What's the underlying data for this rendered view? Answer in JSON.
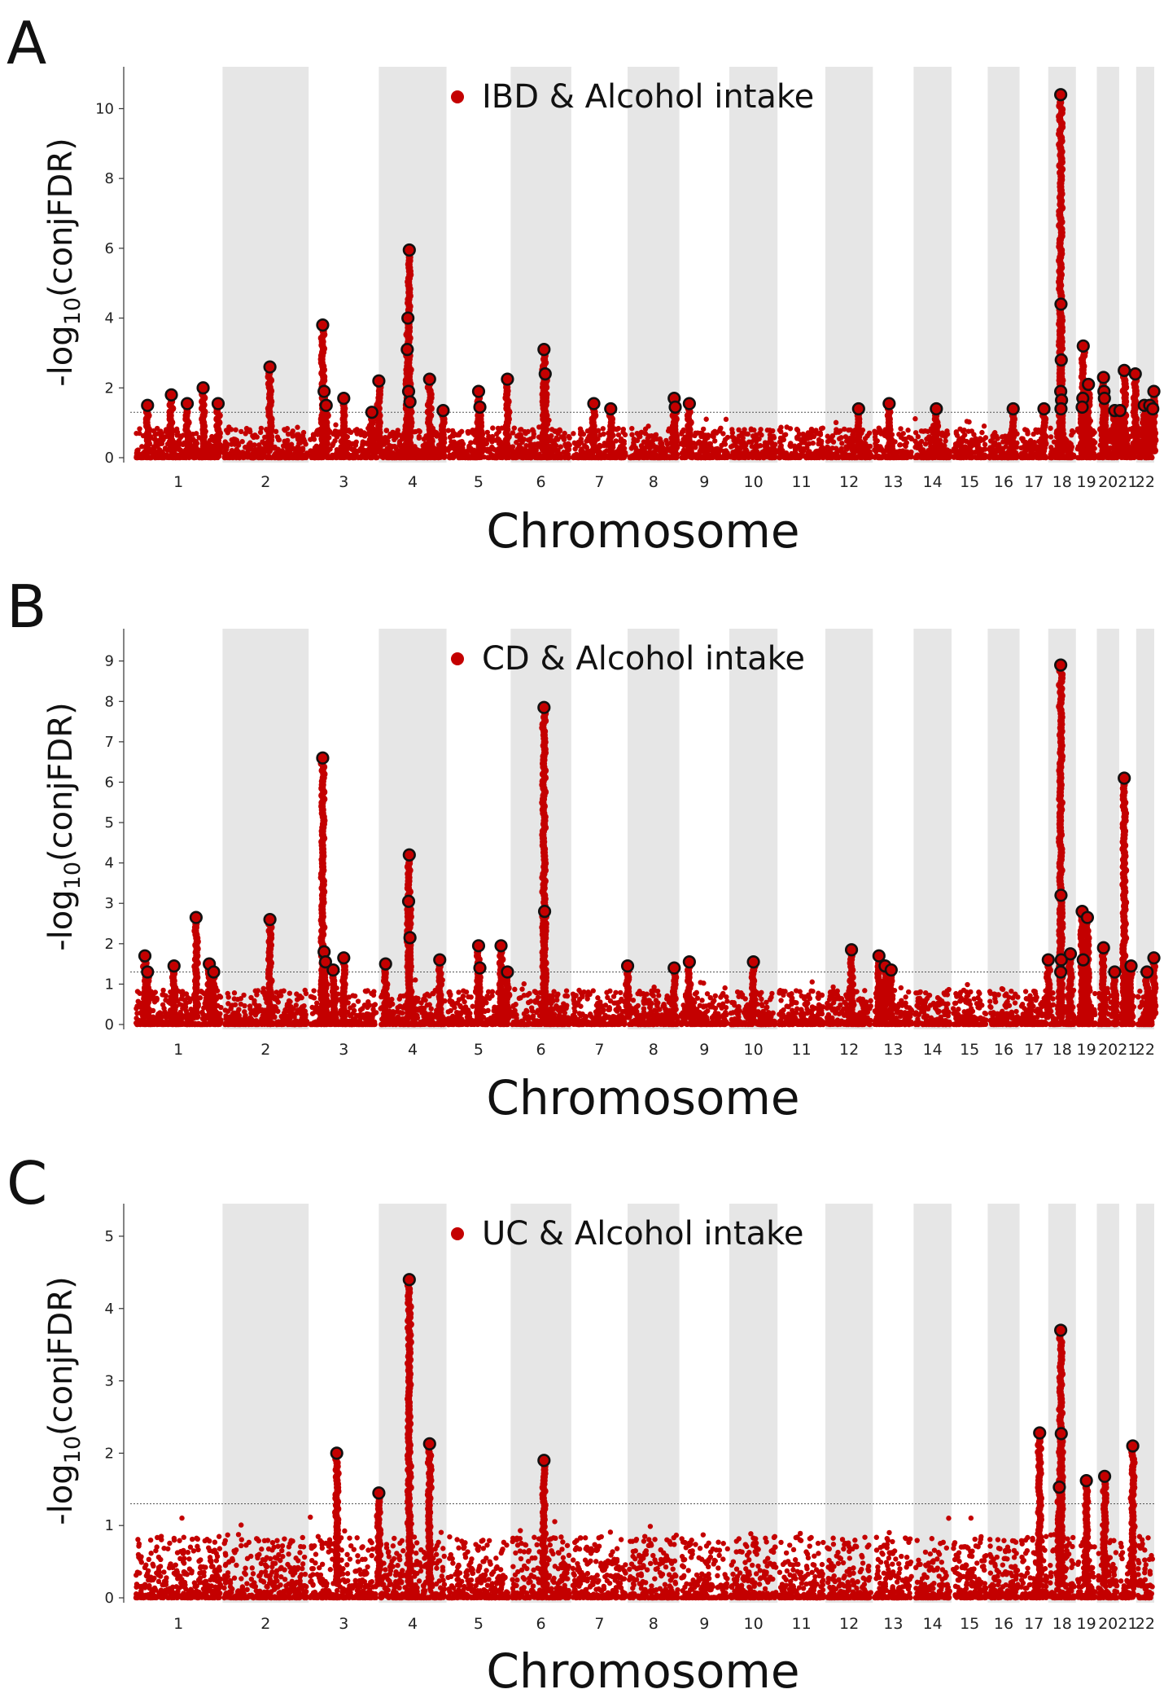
{
  "chart_data": [
    {
      "panel_label": "A",
      "type": "scatter",
      "legend": "IBD & Alcohol intake",
      "ylabel_base": "-log",
      "ylabel_sub": "10",
      "ylabel_rest": "(conjFDR)",
      "xlabel": "Chromosome",
      "ylim": [
        0,
        11.2
      ],
      "yticks": [
        0,
        2,
        4,
        6,
        8,
        10
      ],
      "threshold": 1.3,
      "x_tick_labels": [
        "1",
        "2",
        "3",
        "4",
        "5",
        "6",
        "7",
        "8",
        "9",
        "10",
        "11",
        "12",
        "13",
        "14",
        "15",
        "16",
        "17",
        "18",
        "19",
        "20",
        "21",
        "22"
      ],
      "lead_snps": [
        {
          "pos": 0.15,
          "y": 1.5
        },
        {
          "pos": 0.42,
          "y": 1.8
        },
        {
          "pos": 0.6,
          "y": 1.55
        },
        {
          "pos": 0.78,
          "y": 2.0
        },
        {
          "pos": 0.95,
          "y": 1.55
        },
        {
          "pos": 1.55,
          "y": 2.6
        },
        {
          "pos": 2.2,
          "y": 3.8
        },
        {
          "pos": 2.22,
          "y": 1.9
        },
        {
          "pos": 2.25,
          "y": 1.5
        },
        {
          "pos": 2.5,
          "y": 1.7
        },
        {
          "pos": 2.9,
          "y": 1.3
        },
        {
          "pos": 3.0,
          "y": 2.2
        },
        {
          "pos": 3.45,
          "y": 5.95
        },
        {
          "pos": 3.43,
          "y": 4.0
        },
        {
          "pos": 3.42,
          "y": 3.1
        },
        {
          "pos": 3.44,
          "y": 1.9
        },
        {
          "pos": 3.46,
          "y": 1.6
        },
        {
          "pos": 3.75,
          "y": 2.25
        },
        {
          "pos": 3.95,
          "y": 1.35
        },
        {
          "pos": 4.5,
          "y": 1.9
        },
        {
          "pos": 4.52,
          "y": 1.45
        },
        {
          "pos": 4.95,
          "y": 2.25
        },
        {
          "pos": 5.55,
          "y": 3.1
        },
        {
          "pos": 5.57,
          "y": 2.4
        },
        {
          "pos": 6.4,
          "y": 1.55
        },
        {
          "pos": 6.7,
          "y": 1.4
        },
        {
          "pos": 7.9,
          "y": 1.7
        },
        {
          "pos": 7.92,
          "y": 1.45
        },
        {
          "pos": 8.2,
          "y": 1.55
        },
        {
          "pos": 11.7,
          "y": 1.4
        },
        {
          "pos": 12.4,
          "y": 1.55
        },
        {
          "pos": 13.6,
          "y": 1.4
        },
        {
          "pos": 15.8,
          "y": 1.4
        },
        {
          "pos": 16.85,
          "y": 1.4
        },
        {
          "pos": 17.45,
          "y": 10.4
        },
        {
          "pos": 17.46,
          "y": 4.4
        },
        {
          "pos": 17.47,
          "y": 2.8
        },
        {
          "pos": 17.45,
          "y": 1.9
        },
        {
          "pos": 17.48,
          "y": 1.65
        },
        {
          "pos": 17.46,
          "y": 1.4
        },
        {
          "pos": 18.35,
          "y": 3.2
        },
        {
          "pos": 18.33,
          "y": 1.7
        },
        {
          "pos": 18.3,
          "y": 1.45
        },
        {
          "pos": 18.6,
          "y": 2.1
        },
        {
          "pos": 19.3,
          "y": 2.3
        },
        {
          "pos": 19.32,
          "y": 1.9
        },
        {
          "pos": 19.34,
          "y": 1.7
        },
        {
          "pos": 19.8,
          "y": 1.35
        },
        {
          "pos": 20.05,
          "y": 1.35
        },
        {
          "pos": 20.3,
          "y": 2.5
        },
        {
          "pos": 20.95,
          "y": 2.4
        },
        {
          "pos": 21.45,
          "y": 1.5
        },
        {
          "pos": 21.75,
          "y": 1.5
        },
        {
          "pos": 21.98,
          "y": 1.9
        },
        {
          "pos": 21.92,
          "y": 1.4
        }
      ]
    },
    {
      "panel_label": "B",
      "type": "scatter",
      "legend": "CD & Alcohol intake",
      "ylabel_base": "-log",
      "ylabel_sub": "10",
      "ylabel_rest": "(conjFDR)",
      "xlabel": "Chromosome",
      "ylim": [
        0,
        9.8
      ],
      "yticks": [
        0,
        1,
        2,
        3,
        4,
        5,
        6,
        7,
        8,
        9
      ],
      "threshold": 1.3,
      "x_tick_labels": [
        "1",
        "2",
        "3",
        "4",
        "5",
        "6",
        "7",
        "8",
        "9",
        "10",
        "11",
        "12",
        "13",
        "14",
        "15",
        "16",
        "17",
        "18",
        "19",
        "20",
        "21",
        "22"
      ],
      "lead_snps": [
        {
          "pos": 0.12,
          "y": 1.7
        },
        {
          "pos": 0.15,
          "y": 1.3
        },
        {
          "pos": 0.45,
          "y": 1.45
        },
        {
          "pos": 0.7,
          "y": 2.65
        },
        {
          "pos": 0.85,
          "y": 1.5
        },
        {
          "pos": 0.9,
          "y": 1.3
        },
        {
          "pos": 1.55,
          "y": 2.6
        },
        {
          "pos": 2.2,
          "y": 6.6
        },
        {
          "pos": 2.22,
          "y": 1.8
        },
        {
          "pos": 2.24,
          "y": 1.55
        },
        {
          "pos": 2.35,
          "y": 1.35
        },
        {
          "pos": 2.5,
          "y": 1.65
        },
        {
          "pos": 3.1,
          "y": 1.5
        },
        {
          "pos": 3.45,
          "y": 4.2
        },
        {
          "pos": 3.44,
          "y": 3.05
        },
        {
          "pos": 3.46,
          "y": 2.15
        },
        {
          "pos": 3.9,
          "y": 1.6
        },
        {
          "pos": 4.5,
          "y": 1.95
        },
        {
          "pos": 4.52,
          "y": 1.4
        },
        {
          "pos": 4.85,
          "y": 1.95
        },
        {
          "pos": 4.95,
          "y": 1.3
        },
        {
          "pos": 5.55,
          "y": 7.85
        },
        {
          "pos": 5.56,
          "y": 2.8
        },
        {
          "pos": 7.0,
          "y": 1.45
        },
        {
          "pos": 7.9,
          "y": 1.4
        },
        {
          "pos": 8.2,
          "y": 1.55
        },
        {
          "pos": 9.5,
          "y": 1.55
        },
        {
          "pos": 11.55,
          "y": 1.85
        },
        {
          "pos": 12.15,
          "y": 1.7
        },
        {
          "pos": 12.3,
          "y": 1.45
        },
        {
          "pos": 12.45,
          "y": 1.35
        },
        {
          "pos": 17.0,
          "y": 1.6
        },
        {
          "pos": 17.45,
          "y": 8.9
        },
        {
          "pos": 17.46,
          "y": 3.2
        },
        {
          "pos": 17.47,
          "y": 1.6
        },
        {
          "pos": 17.45,
          "y": 1.3
        },
        {
          "pos": 17.8,
          "y": 1.75
        },
        {
          "pos": 18.3,
          "y": 2.8
        },
        {
          "pos": 18.35,
          "y": 1.6
        },
        {
          "pos": 18.55,
          "y": 2.65
        },
        {
          "pos": 19.3,
          "y": 1.9
        },
        {
          "pos": 19.8,
          "y": 1.3
        },
        {
          "pos": 20.3,
          "y": 6.1
        },
        {
          "pos": 20.7,
          "y": 1.45
        },
        {
          "pos": 21.6,
          "y": 1.3
        },
        {
          "pos": 21.98,
          "y": 1.65
        }
      ]
    },
    {
      "panel_label": "C",
      "type": "scatter",
      "legend": "UC & Alcohol intake",
      "ylabel_base": "-log",
      "ylabel_sub": "10",
      "ylabel_rest": "(conjFDR)",
      "xlabel": "Chromosome",
      "ylim": [
        0,
        5.45
      ],
      "yticks": [
        0,
        1,
        2,
        3,
        4,
        5
      ],
      "threshold": 1.3,
      "x_tick_labels": [
        "1",
        "2",
        "3",
        "4",
        "5",
        "6",
        "7",
        "8",
        "9",
        "10",
        "11",
        "12",
        "13",
        "14",
        "15",
        "16",
        "17",
        "18",
        "19",
        "20",
        "21",
        "22"
      ],
      "lead_snps": [
        {
          "pos": 2.4,
          "y": 2.0
        },
        {
          "pos": 3.0,
          "y": 1.45
        },
        {
          "pos": 3.45,
          "y": 4.4
        },
        {
          "pos": 3.75,
          "y": 2.13
        },
        {
          "pos": 5.55,
          "y": 1.9
        },
        {
          "pos": 16.7,
          "y": 2.28
        },
        {
          "pos": 17.45,
          "y": 3.7
        },
        {
          "pos": 17.47,
          "y": 2.27
        },
        {
          "pos": 17.4,
          "y": 1.53
        },
        {
          "pos": 18.5,
          "y": 1.62
        },
        {
          "pos": 19.35,
          "y": 1.68
        },
        {
          "pos": 20.8,
          "y": 2.1
        }
      ]
    }
  ]
}
